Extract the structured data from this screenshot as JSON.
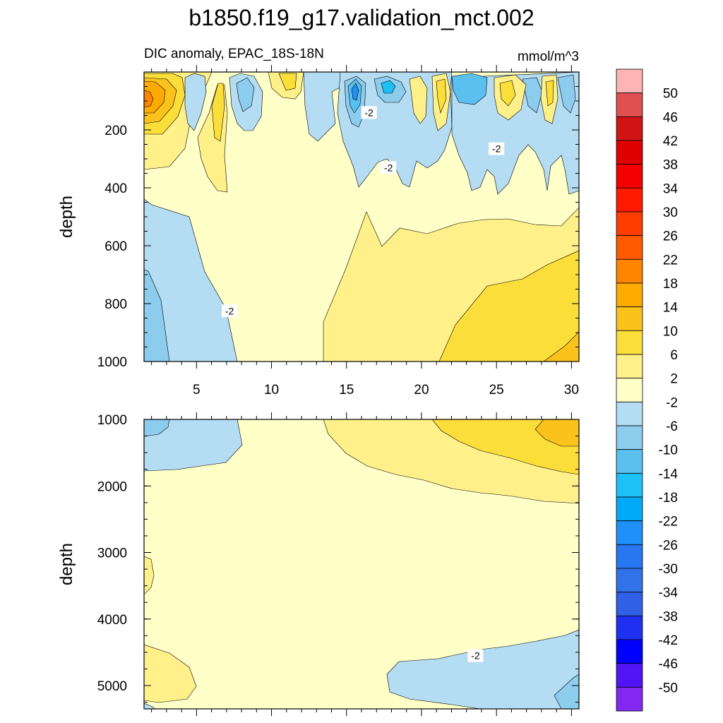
{
  "chart_data": {
    "type": "heatmap",
    "title": "b1850.f19_g17.validation_mct.002",
    "subtitle": "DIC anomaly, EPAC_18S-18N",
    "units": "mmol/m^3",
    "xlabel": "",
    "xlim": [
      1.5,
      30.5
    ],
    "x_ticks": [
      5,
      10,
      15,
      20,
      25,
      30
    ],
    "colorbar": {
      "levels": [
        50,
        46,
        42,
        38,
        34,
        30,
        26,
        22,
        18,
        14,
        10,
        6,
        2,
        -2,
        -6,
        -10,
        -14,
        -18,
        -22,
        -26,
        -30,
        -34,
        -38,
        -42,
        -46,
        -50
      ],
      "colors": [
        "#fcb4b4",
        "#e05050",
        "#d01414",
        "#e00000",
        "#f50000",
        "#ff1a00",
        "#ff3d00",
        "#ff5a00",
        "#ff8400",
        "#ffaa00",
        "#fcc21c",
        "#fcde3a",
        "#fff08a",
        "#ffffc8",
        "#b4dcf2",
        "#8ccced",
        "#5ac0f0",
        "#1ec0f8",
        "#00aaf8",
        "#1e90f8",
        "#2876f0",
        "#3272e8",
        "#3060e6",
        "#2030f0",
        "#0000ff",
        "#5014f5",
        "#8228f0"
      ]
    },
    "panels": [
      {
        "name": "upper",
        "ylabel": "depth",
        "ylim": [
          0,
          1000
        ],
        "y_ticks": [
          200,
          400,
          600,
          800,
          1000
        ],
        "contour_labels": [
          {
            "text": "-2",
            "x": 16.5,
            "y": 140
          },
          {
            "text": "-2",
            "x": 17.8,
            "y": 330
          },
          {
            "text": "-2",
            "x": 25.0,
            "y": 265
          },
          {
            "text": "-2",
            "x": 7.2,
            "y": 825
          }
        ]
      },
      {
        "name": "lower",
        "ylabel": "depth",
        "ylim": [
          1000,
          5350
        ],
        "y_ticks": [
          1000,
          2000,
          3000,
          4000,
          5000
        ],
        "contour_labels": [
          {
            "text": "-2",
            "x": 23.6,
            "y": 4550
          }
        ]
      }
    ]
  }
}
